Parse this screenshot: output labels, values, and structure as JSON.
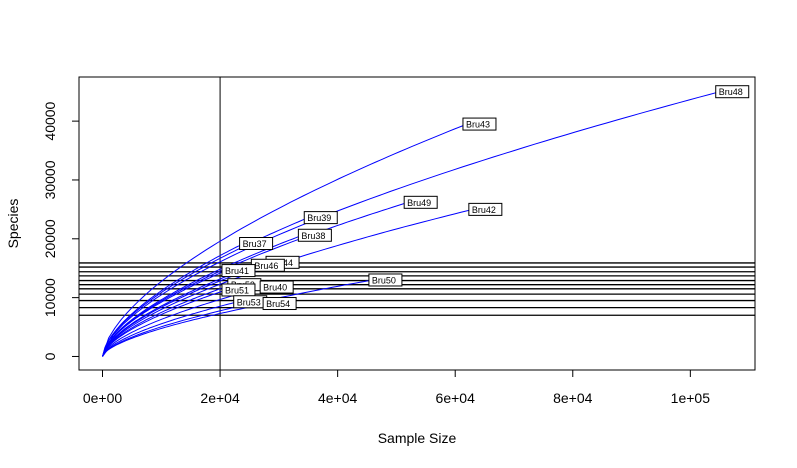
{
  "chart_data": {
    "type": "line",
    "title": "",
    "xlabel": "Sample Size",
    "ylabel": "Species",
    "xlim": [
      -4000,
      111000
    ],
    "ylim": [
      -2300,
      47500
    ],
    "x_ticks": [
      0,
      20000,
      40000,
      60000,
      80000,
      100000
    ],
    "x_tick_labels": [
      "0e+00",
      "2e+04",
      "4e+04",
      "6e+04",
      "8e+04",
      "1e+05"
    ],
    "y_ticks": [
      0,
      10000,
      20000,
      30000,
      40000
    ],
    "y_tick_labels": [
      "0",
      "10000",
      "20000",
      "30000",
      "40000"
    ],
    "vertical_reference_line": 20000,
    "horizontal_reference_lines": [
      7000,
      8300,
      9500,
      10600,
      11500,
      12200,
      12900,
      13700,
      14400,
      15200,
      15900
    ],
    "curve_color": "#0000ff",
    "series": [
      {
        "name": "Bru48",
        "n": 105000,
        "s": 45000
      },
      {
        "name": "Bru43",
        "n": 62000,
        "s": 39500
      },
      {
        "name": "Bru49",
        "n": 52000,
        "s": 26200
      },
      {
        "name": "Bru42",
        "n": 63000,
        "s": 25000
      },
      {
        "name": "Bru39",
        "n": 35000,
        "s": 23600
      },
      {
        "name": "Bru38",
        "n": 34000,
        "s": 20600
      },
      {
        "name": "Bru37",
        "n": 24000,
        "s": 19200
      },
      {
        "name": "Bru44",
        "n": 28500,
        "s": 16000
      },
      {
        "name": "Bru46",
        "n": 26000,
        "s": 15500
      },
      {
        "name": "Bru41",
        "n": 21000,
        "s": 14600
      },
      {
        "name": "Bru50",
        "n": 46000,
        "s": 13000
      },
      {
        "name": "Bru52",
        "n": 22000,
        "s": 12200
      },
      {
        "name": "Bru40",
        "n": 27500,
        "s": 11800
      },
      {
        "name": "Bru51",
        "n": 21000,
        "s": 11300
      },
      {
        "name": "Bru53",
        "n": 23000,
        "s": 9300
      },
      {
        "name": "Bru54",
        "n": 28000,
        "s": 9000
      }
    ]
  }
}
